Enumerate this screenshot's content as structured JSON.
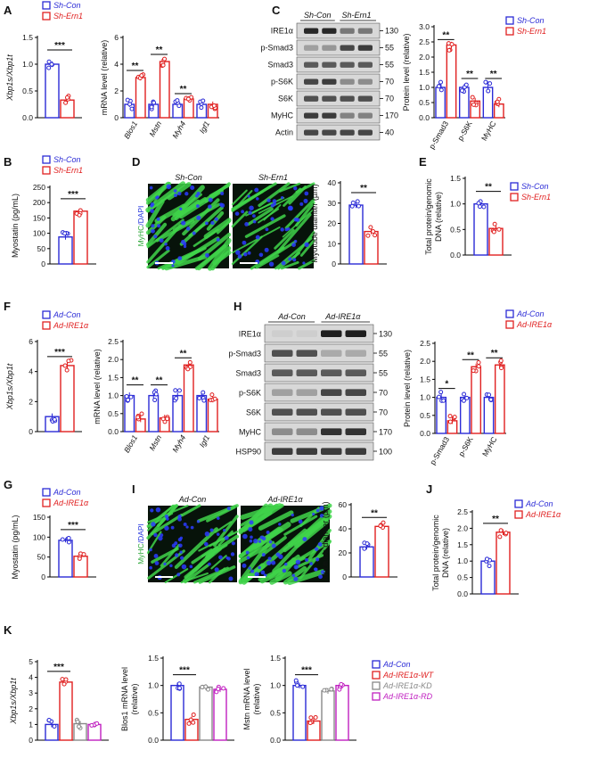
{
  "figure": {
    "colors": {
      "blue": "#2b2bd6",
      "red": "#e02020",
      "gray": "#888888",
      "purple": "#c020c0",
      "text": "#111111"
    },
    "panels": {
      "A": {
        "letter": "A",
        "chart1": {
          "ylabel": "Xbp1s/Xbp1t",
          "ticks": [
            "0.0",
            "0.5",
            "1.0",
            "1.5"
          ],
          "categories": [
            ""
          ],
          "sig": [
            "***"
          ]
        },
        "chart2": {
          "ylabel": "mRNA level (relative)",
          "ticks": [
            "0",
            "2",
            "4",
            "6"
          ],
          "categories": [
            "Blos1",
            "Mstn",
            "Myh4",
            "Igf1"
          ],
          "sig": [
            "**",
            "**",
            "**"
          ]
        },
        "legend": [
          "Sh-Con",
          "Sh-Ern1"
        ]
      },
      "B": {
        "letter": "B",
        "ylabel": "Myostatin (pg/mL)",
        "ticks": [
          "0",
          "50",
          "100",
          "150",
          "200",
          "250"
        ],
        "sig": [
          "***"
        ],
        "legend": [
          "Sh-Con",
          "Sh-Ern1"
        ]
      },
      "C": {
        "letter": "C",
        "blot_headers": [
          "Sh-Con",
          "Sh-Ern1"
        ],
        "rows": [
          {
            "label": "IRE1α",
            "mw": "130"
          },
          {
            "label": "p-Smad3",
            "mw": "55"
          },
          {
            "label": "Smad3",
            "mw": "55"
          },
          {
            "label": "p-S6K",
            "mw": "70"
          },
          {
            "label": "S6K",
            "mw": "70"
          },
          {
            "label": "MyHC",
            "mw": "170"
          },
          {
            "label": "Actin",
            "mw": "40"
          }
        ],
        "ylabel": "Protein level (relative)",
        "ticks": [
          "0.0",
          "0.5",
          "1.0",
          "1.5",
          "2.0",
          "2.5",
          "3.0"
        ],
        "categories": [
          "p-Smad3",
          "p-S6K",
          "MyHC"
        ],
        "sig": [
          "**",
          "**",
          "**"
        ],
        "legend": [
          "Sh-Con",
          "Sh-Ern1"
        ]
      },
      "D": {
        "letter": "D",
        "image_headers": [
          "Sh-Con",
          "Sh-Ern1"
        ],
        "stain_label": [
          "MyHC",
          "/DAPI"
        ],
        "ylabel": "Myotube diamter (µm)",
        "ticks": [
          "0",
          "10",
          "20",
          "30",
          "40"
        ],
        "sig": [
          "**"
        ]
      },
      "E": {
        "letter": "E",
        "ylabel": [
          "Total protein/genomic",
          "DNA (relative)"
        ],
        "ticks": [
          "0.0",
          "0.5",
          "1.0",
          "1.5"
        ],
        "sig": [
          "**"
        ],
        "legend": [
          "Sh-Con",
          "Sh-Ern1"
        ]
      },
      "F": {
        "letter": "F",
        "chart1": {
          "ylabel": "Xbp1s/Xbp1t",
          "ticks": [
            "0",
            "2",
            "4",
            "6"
          ],
          "sig": [
            "***"
          ]
        },
        "chart2": {
          "ylabel": "mRNA level (relative)",
          "ticks": [
            "0.0",
            "0.5",
            "1.0",
            "1.5",
            "2.0",
            "2.5"
          ],
          "categories": [
            "Blos1",
            "Mstn",
            "Myh4",
            "Igf1"
          ],
          "sig": [
            "**",
            "**",
            "**"
          ]
        },
        "legend": [
          "Ad-Con",
          "Ad-IRE1α"
        ]
      },
      "G": {
        "letter": "G",
        "ylabel": "Myostatin (pg/mL)",
        "ticks": [
          "0",
          "50",
          "100",
          "150"
        ],
        "sig": [
          "***"
        ],
        "legend": [
          "Ad-Con",
          "Ad-IRE1α"
        ]
      },
      "H": {
        "letter": "H",
        "blot_headers": [
          "Ad-Con",
          "Ad-IRE1α"
        ],
        "rows": [
          {
            "label": "IRE1α",
            "mw": "130"
          },
          {
            "label": "p-Smad3",
            "mw": "55"
          },
          {
            "label": "Smad3",
            "mw": "55"
          },
          {
            "label": "p-S6K",
            "mw": "70"
          },
          {
            "label": "S6K",
            "mw": "70"
          },
          {
            "label": "MyHC",
            "mw": "170"
          },
          {
            "label": "HSP90",
            "mw": "100"
          }
        ],
        "ylabel": "Protein level (relative)",
        "ticks": [
          "0.0",
          "0.5",
          "1.0",
          "1.5",
          "2.0",
          "2.5"
        ],
        "categories": [
          "p-Smad3",
          "p-S6K",
          "MyHC"
        ],
        "sig": [
          "*",
          "**",
          "**"
        ],
        "legend": [
          "Ad-Con",
          "Ad-IRE1α"
        ]
      },
      "I": {
        "letter": "I",
        "image_headers": [
          "Ad-Con",
          "Ad-IRE1α"
        ],
        "stain_label": [
          "MyHC",
          "/DAPI"
        ],
        "ylabel": "Myotube diamter (µm)",
        "ticks": [
          "0",
          "20",
          "40",
          "60"
        ],
        "sig": [
          "**"
        ]
      },
      "J": {
        "letter": "J",
        "ylabel": [
          "Total protein/genomic",
          "DNA (relative)"
        ],
        "ticks": [
          "0.0",
          "0.5",
          "1.0",
          "1.5",
          "2.0",
          "2.5"
        ],
        "sig": [
          "**"
        ],
        "legend": [
          "Ad-Con",
          "Ad-IRE1α"
        ]
      },
      "K": {
        "letter": "K",
        "chart1": {
          "ylabel": "Xbp1s/Xbp1t",
          "ticks": [
            "0",
            "1",
            "2",
            "3",
            "4",
            "5"
          ],
          "sig": [
            "***"
          ]
        },
        "chart2": {
          "ylabel": [
            "Blos1 mRNA level",
            "(relative)"
          ],
          "ticks": [
            "0.0",
            "0.5",
            "1.0",
            "1.5"
          ],
          "sig": [
            "***"
          ]
        },
        "chart3": {
          "ylabel": [
            "Mstn mRNA level",
            "(relative)"
          ],
          "ticks": [
            "0.0",
            "0.5",
            "1.0",
            "1.5"
          ],
          "sig": [
            "***"
          ]
        },
        "legend": [
          "Ad-Con",
          "Ad-IRE1α-WT",
          "Ad-IRE1α-KD",
          "Ad-IRE1α-RD"
        ]
      }
    }
  },
  "chart_data": [
    {
      "panel": "A-left",
      "type": "bar",
      "categories": [
        "Sh-Con",
        "Sh-Ern1"
      ],
      "values": [
        1.0,
        0.33
      ],
      "ylabel": "Xbp1s/Xbp1t",
      "ylim": [
        0,
        1.5
      ]
    },
    {
      "panel": "A-right",
      "type": "bar",
      "categories": [
        "Blos1",
        "Mstn",
        "Myh4",
        "Igf1"
      ],
      "series": [
        {
          "name": "Sh-Con",
          "values": [
            1.0,
            1.0,
            1.0,
            1.0
          ]
        },
        {
          "name": "Sh-Ern1",
          "values": [
            3.0,
            4.2,
            1.4,
            1.0
          ]
        }
      ],
      "ylabel": "mRNA level (relative)",
      "ylim": [
        0,
        6
      ]
    },
    {
      "panel": "B",
      "type": "bar",
      "categories": [
        "Sh-Con",
        "Sh-Ern1"
      ],
      "values": [
        88,
        172
      ],
      "ylabel": "Myostatin (pg/mL)",
      "ylim": [
        0,
        250
      ]
    },
    {
      "panel": "C",
      "type": "bar",
      "categories": [
        "p-Smad3",
        "p-S6K",
        "MyHC"
      ],
      "series": [
        {
          "name": "Sh-Con",
          "values": [
            1.0,
            1.0,
            1.0
          ]
        },
        {
          "name": "Sh-Ern1",
          "values": [
            2.4,
            0.55,
            0.45
          ]
        }
      ],
      "ylabel": "Protein level (relative)",
      "ylim": [
        0,
        3
      ]
    },
    {
      "panel": "D",
      "type": "bar",
      "categories": [
        "Sh-Con",
        "Sh-Ern1"
      ],
      "values": [
        29,
        16
      ],
      "ylabel": "Myotube diamter (µm)",
      "ylim": [
        0,
        40
      ]
    },
    {
      "panel": "E",
      "type": "bar",
      "categories": [
        "Sh-Con",
        "Sh-Ern1"
      ],
      "values": [
        1.0,
        0.52
      ],
      "ylabel": "Total protein/genomic DNA (relative)",
      "ylim": [
        0,
        1.5
      ]
    },
    {
      "panel": "F-left",
      "type": "bar",
      "categories": [
        "Ad-Con",
        "Ad-IRE1α"
      ],
      "values": [
        1.0,
        4.4
      ],
      "ylabel": "Xbp1s/Xbp1t",
      "ylim": [
        0,
        6
      ]
    },
    {
      "panel": "F-right",
      "type": "bar",
      "categories": [
        "Blos1",
        "Mstn",
        "Myh4",
        "Igf1"
      ],
      "series": [
        {
          "name": "Ad-Con",
          "values": [
            1.0,
            1.0,
            1.0,
            1.0
          ]
        },
        {
          "name": "Ad-IRE1α",
          "values": [
            0.35,
            0.38,
            1.85,
            0.9
          ]
        }
      ],
      "ylabel": "mRNA level (relative)",
      "ylim": [
        0,
        2.5
      ]
    },
    {
      "panel": "G",
      "type": "bar",
      "categories": [
        "Ad-Con",
        "Ad-IRE1α"
      ],
      "values": [
        92,
        52
      ],
      "ylabel": "Myostatin (pg/mL)",
      "ylim": [
        0,
        150
      ]
    },
    {
      "panel": "H",
      "type": "bar",
      "categories": [
        "p-Smad3",
        "p-S6K",
        "MyHC"
      ],
      "series": [
        {
          "name": "Ad-Con",
          "values": [
            1.0,
            1.0,
            1.0
          ]
        },
        {
          "name": "Ad-IRE1α",
          "values": [
            0.35,
            1.85,
            1.9
          ]
        }
      ],
      "ylabel": "Protein level (relative)",
      "ylim": [
        0,
        2.5
      ]
    },
    {
      "panel": "I",
      "type": "bar",
      "categories": [
        "Ad-Con",
        "Ad-IRE1α"
      ],
      "values": [
        25,
        42
      ],
      "ylabel": "Myotube diamter (µm)",
      "ylim": [
        0,
        60
      ]
    },
    {
      "panel": "J",
      "type": "bar",
      "categories": [
        "Ad-Con",
        "Ad-IRE1α"
      ],
      "values": [
        1.0,
        1.88
      ],
      "ylabel": "Total protein/genomic DNA (relative)",
      "ylim": [
        0,
        2.5
      ]
    },
    {
      "panel": "K-left",
      "type": "bar",
      "categories": [
        "Ad-Con",
        "Ad-IRE1α-WT",
        "Ad-IRE1α-KD",
        "Ad-IRE1α-RD"
      ],
      "values": [
        1.0,
        3.7,
        1.05,
        1.0
      ],
      "ylabel": "Xbp1s/Xbp1t",
      "ylim": [
        0,
        5
      ]
    },
    {
      "panel": "K-middle",
      "type": "bar",
      "categories": [
        "Ad-Con",
        "Ad-IRE1α-WT",
        "Ad-IRE1α-KD",
        "Ad-IRE1α-RD"
      ],
      "values": [
        1.0,
        0.38,
        0.97,
        0.93
      ],
      "ylabel": "Blos1 mRNA level (relative)",
      "ylim": [
        0,
        1.5
      ]
    },
    {
      "panel": "K-right",
      "type": "bar",
      "categories": [
        "Ad-Con",
        "Ad-IRE1α-WT",
        "Ad-IRE1α-KD",
        "Ad-IRE1α-RD"
      ],
      "values": [
        1.0,
        0.35,
        0.9,
        1.0
      ],
      "ylabel": "Mstn mRNA level (relative)",
      "ylim": [
        0,
        1.5
      ]
    }
  ]
}
